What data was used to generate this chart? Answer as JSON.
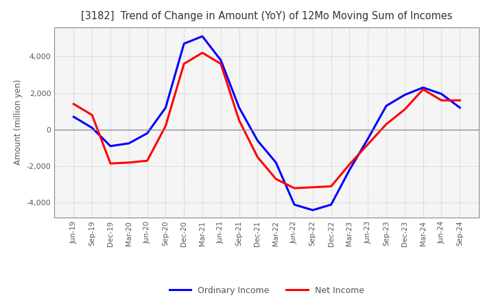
{
  "title": "[3182]  Trend of Change in Amount (YoY) of 12Mo Moving Sum of Incomes",
  "ylabel": "Amount (million yen)",
  "xlabels": [
    "Jun-19",
    "Sep-19",
    "Dec-19",
    "Mar-20",
    "Jun-20",
    "Sep-20",
    "Dec-20",
    "Mar-21",
    "Jun-21",
    "Sep-21",
    "Dec-21",
    "Mar-22",
    "Jun-22",
    "Sep-22",
    "Dec-22",
    "Mar-23",
    "Jun-23",
    "Sep-23",
    "Dec-23",
    "Mar-24",
    "Jun-24",
    "Sep-24"
  ],
  "ordinary_income": [
    700,
    100,
    -900,
    -750,
    -200,
    1200,
    4700,
    5100,
    3800,
    1200,
    -600,
    -1800,
    -4100,
    -4400,
    -4100,
    -2200,
    -500,
    1300,
    1900,
    2300,
    1950,
    1200
  ],
  "net_income": [
    1400,
    800,
    -1850,
    -1800,
    -1700,
    200,
    3600,
    4200,
    3600,
    500,
    -1500,
    -2700,
    -3200,
    -3150,
    -3100,
    -1900,
    -800,
    300,
    1100,
    2200,
    1600,
    1600
  ],
  "ordinary_income_color": "#0000FF",
  "net_income_color": "#FF0000",
  "ylim": [
    -4800,
    5600
  ],
  "yticks": [
    -4000,
    -2000,
    0,
    2000,
    4000
  ],
  "line_width": 2.2,
  "legend_labels": [
    "Ordinary Income",
    "Net Income"
  ],
  "background_color": "#FFFFFF",
  "plot_bg_color": "#F5F5F5",
  "grid_color": "#BBBBBB",
  "tick_label_color": "#555555",
  "title_color": "#333333"
}
